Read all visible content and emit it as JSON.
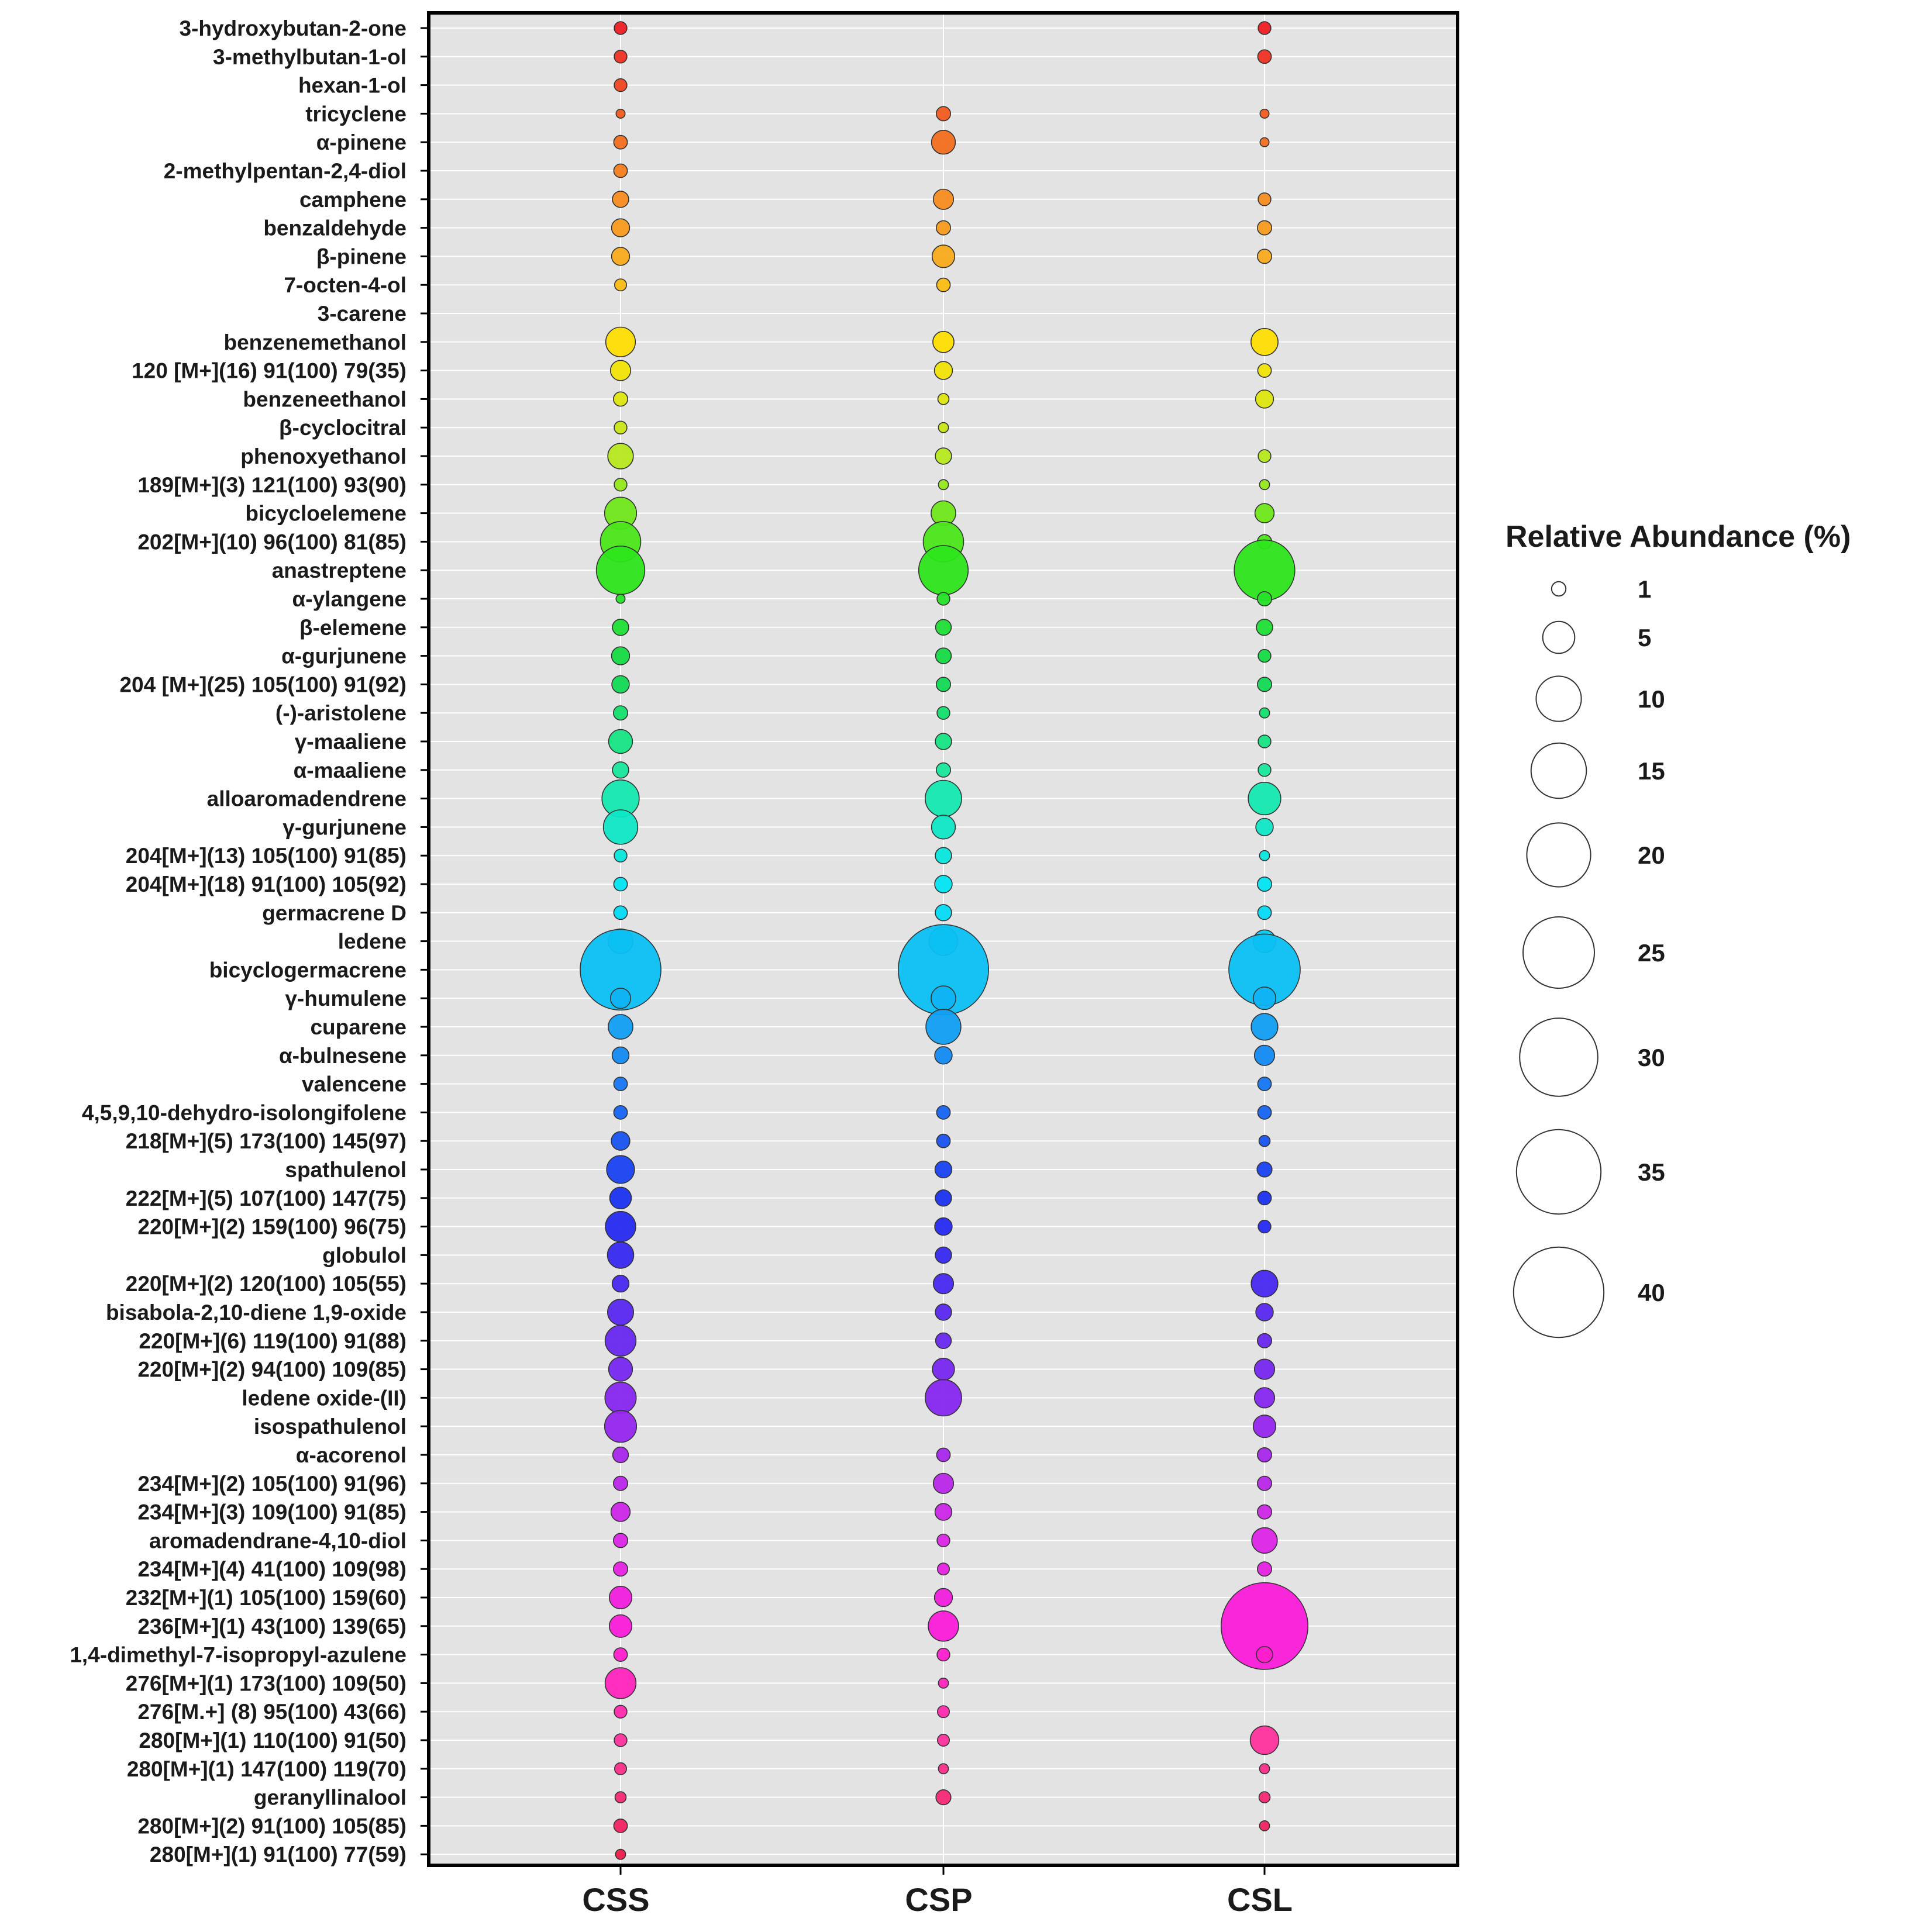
{
  "chart_data": {
    "type": "bubble",
    "title": "",
    "xlabel": "",
    "ylabel": "",
    "grid": true,
    "legend_position": "right",
    "legend_title": "Relative Abundance (%)",
    "legend_values": [
      1,
      5,
      10,
      15,
      20,
      25,
      30,
      35,
      40
    ],
    "legend_labels": [
      "1",
      "5",
      "10",
      "15",
      "20",
      "25",
      "30",
      "35",
      "40"
    ],
    "categories": [
      "CSS",
      "CSP",
      "CSL"
    ],
    "compounds": [
      "3-hydroxybutan-2-one",
      "3-methylbutan-1-ol",
      "hexan-1-ol",
      "tricyclene",
      "α-pinene",
      "2-methylpentan-2,4-diol",
      "camphene",
      "benzaldehyde",
      "β-pinene",
      "7-octen-4-ol",
      "3-carene",
      "benzenemethanol",
      "120 [M+](16) 91(100) 79(35)",
      "benzeneethanol",
      "β-cyclocitral",
      "phenoxyethanol",
      "189[M+](3) 121(100) 93(90)",
      "bicycloelemene",
      "202[M+](10) 96(100) 81(85)",
      "anastreptene",
      "α-ylangene",
      "β-elemene",
      "α-gurjunene",
      "204 [M+](25) 105(100) 91(92)",
      "(-)-aristolene",
      "γ-maaliene",
      "α-maaliene",
      "alloaromadendrene",
      "γ-gurjunene",
      "204[M+](13) 105(100) 91(85)",
      "204[M+](18) 91(100) 105(92)",
      "germacrene D",
      "ledene",
      "bicyclogermacrene",
      "γ-humulene",
      "cuparene",
      "α-bulnesene",
      "valencene",
      "4,5,9,10-dehydro-isolongifolene",
      "218[M+](5) 173(100) 145(97)",
      "spathulenol",
      "222[M+](5) 107(100) 147(75)",
      "220[M+](2) 159(100) 96(75)",
      "globulol",
      "220[M+](2) 120(100) 105(55)",
      "bisabola-2,10-diene 1,9-oxide",
      "220[M+](6) 119(100) 91(88)",
      "220[M+](2) 94(100) 109(85)",
      "ledene oxide-(II)",
      "isospathulenol",
      "α-acorenol",
      "234[M+](2) 105(100) 91(96)",
      "234[M+](3) 109(100) 91(85)",
      "aromadendrane-4,10-diol",
      "234[M+](4) 41(100) 109(98)",
      "232[M+](1) 105(100) 159(60)",
      "236[M+](1) 43(100) 139(65)",
      "1,4-dimethyl-7-isopropyl-azulene",
      "276[M+](1) 173(100) 109(50)",
      "276[M.+] (8) 95(100) 43(66)",
      "280[M+](1) 110(100) 91(50)",
      "280[M+](1) 147(100) 119(70)",
      "geranyllinalool",
      "280[M+](2) 91(100) 105(85)",
      "280[M+](1) 91(100) 77(59)"
    ],
    "series": [
      {
        "name": "CSS",
        "values": [
          0.8,
          0.8,
          0.8,
          0.4,
          0.9,
          0.9,
          1.3,
          1.6,
          1.6,
          0.7,
          0,
          4.3,
          2.0,
          1.0,
          0.8,
          3.2,
          0.8,
          5.0,
          8.0,
          11.5,
          0.4,
          1.3,
          1.6,
          1.5,
          1.0,
          2.8,
          1.3,
          6.8,
          5.8,
          0.8,
          0.9,
          0.9,
          3.0,
          32.0,
          2.0,
          3.0,
          1.4,
          0.9,
          0.9,
          1.7,
          3.8,
          2.3,
          4.5,
          3.4,
          1.4,
          3.3,
          4.7,
          2.8,
          4.8,
          5.0,
          1.2,
          1.0,
          1.8,
          1.0,
          1.0,
          2.5,
          2.5,
          0.9,
          4.7,
          0.8,
          0.8,
          0.7,
          0.6,
          0.9,
          0.5
        ]
      },
      {
        "name": "CSP",
        "values": [
          0,
          0,
          0,
          1.0,
          2.8,
          0,
          2.0,
          1.0,
          2.5,
          0.9,
          0,
          2.2,
          1.6,
          0.6,
          0.5,
          1.3,
          0.5,
          3.0,
          8.0,
          12.0,
          0.8,
          1.2,
          1.2,
          1.0,
          0.8,
          1.3,
          1.0,
          6.5,
          2.8,
          1.3,
          1.5,
          1.3,
          4.0,
          40.0,
          3.0,
          6.0,
          1.5,
          0,
          0.9,
          0.9,
          1.4,
          1.3,
          1.5,
          1.3,
          2.0,
          1.3,
          1.2,
          2.4,
          6.5,
          0,
          0.9,
          2.0,
          1.4,
          0.8,
          0.7,
          1.6,
          4.5,
          0.8,
          0.5,
          0.7,
          0.7,
          0.5,
          1.1,
          0,
          0
        ]
      },
      {
        "name": "CSL",
        "values": [
          0.8,
          0.9,
          0,
          0.4,
          0.4,
          0,
          0.8,
          1.0,
          1.0,
          0,
          0,
          3.6,
          0.9,
          1.6,
          0,
          0.8,
          0.5,
          1.8,
          1.0,
          18.0,
          1.0,
          1.3,
          0.8,
          1.0,
          0.5,
          0.8,
          0.8,
          5.2,
          1.5,
          0.5,
          1.0,
          0.9,
          2.5,
          25.0,
          2.5,
          3.5,
          2.0,
          0.9,
          0.9,
          0.6,
          1.1,
          0.9,
          0.8,
          0,
          3.5,
          1.5,
          1.0,
          2.0,
          2.0,
          2.5,
          1.0,
          1.0,
          1.0,
          3.2,
          1.0,
          0,
          37.0,
          1.3,
          0,
          0,
          4.0,
          0.5,
          0.6,
          0.5,
          0
        ]
      }
    ],
    "colors": [
      "#ee1c25",
      "#f26b1d",
      "#f7a21e",
      "#ffe200",
      "#b4e81c",
      "#2ee619",
      "#10d84a",
      "#19e9a2",
      "#00e5f5",
      "#0fb5f3",
      "#1669f2",
      "#1b2bf0",
      "#5b27ee",
      "#9326ee",
      "#d926e7",
      "#ff1ad6",
      "#ff3299",
      "#ec1c4a"
    ]
  }
}
